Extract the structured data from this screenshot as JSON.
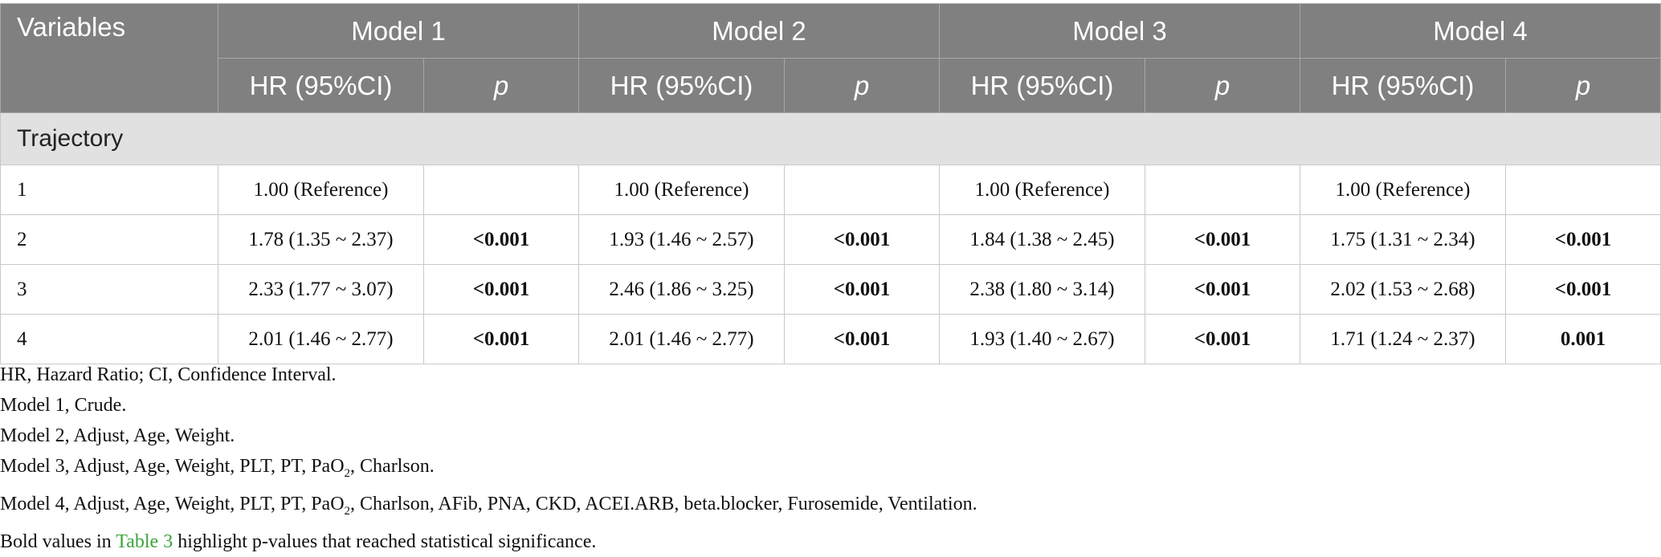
{
  "header": {
    "variables": "Variables",
    "models": [
      "Model 1",
      "Model 2",
      "Model 3",
      "Model 4"
    ],
    "hr_label": "HR (95%CI)",
    "p_label": "p"
  },
  "section": "Trajectory",
  "rows": [
    {
      "label": "1",
      "cells": [
        [
          "1.00 (Reference)",
          ""
        ],
        [
          "1.00 (Reference)",
          ""
        ],
        [
          "1.00 (Reference)",
          ""
        ],
        [
          "1.00 (Reference)",
          ""
        ]
      ]
    },
    {
      "label": "2",
      "cells": [
        [
          "1.78 (1.35 ~ 2.37)",
          "<0.001"
        ],
        [
          "1.93 (1.46 ~ 2.57)",
          "<0.001"
        ],
        [
          "1.84 (1.38 ~ 2.45)",
          "<0.001"
        ],
        [
          "1.75 (1.31 ~ 2.34)",
          "<0.001"
        ]
      ]
    },
    {
      "label": "3",
      "cells": [
        [
          "2.33 (1.77 ~ 3.07)",
          "<0.001"
        ],
        [
          "2.46 (1.86 ~ 3.25)",
          "<0.001"
        ],
        [
          "2.38 (1.80 ~ 3.14)",
          "<0.001"
        ],
        [
          "2.02 (1.53 ~ 2.68)",
          "<0.001"
        ]
      ]
    },
    {
      "label": "4",
      "cells": [
        [
          "2.01 (1.46 ~ 2.77)",
          "<0.001"
        ],
        [
          "2.01 (1.46 ~ 2.77)",
          "<0.001"
        ],
        [
          "1.93 (1.40 ~ 2.67)",
          "<0.001"
        ],
        [
          "1.71 (1.24 ~ 2.37)",
          "0.001"
        ]
      ]
    }
  ],
  "notes": {
    "n1": "HR, Hazard Ratio; CI, Confidence Interval.",
    "n2": "Model 1, Crude.",
    "n3": "Model 2, Adjust, Age, Weight.",
    "n4_a": "Model 3, Adjust, Age, Weight, PLT, PT, PaO",
    "n4_sub": "2",
    "n4_b": ", Charlson.",
    "n5_a": "Model 4, Adjust, Age, Weight, PLT, PT, PaO",
    "n5_sub": "2",
    "n5_b": ", Charlson, AFib, PNA, CKD, ACEI.ARB, beta.blocker, Furosemide, Ventilation.",
    "n6_a": "Bold values in ",
    "n6_link": "Table 3",
    "n6_b": " highlight p-values that reached statistical significance."
  }
}
